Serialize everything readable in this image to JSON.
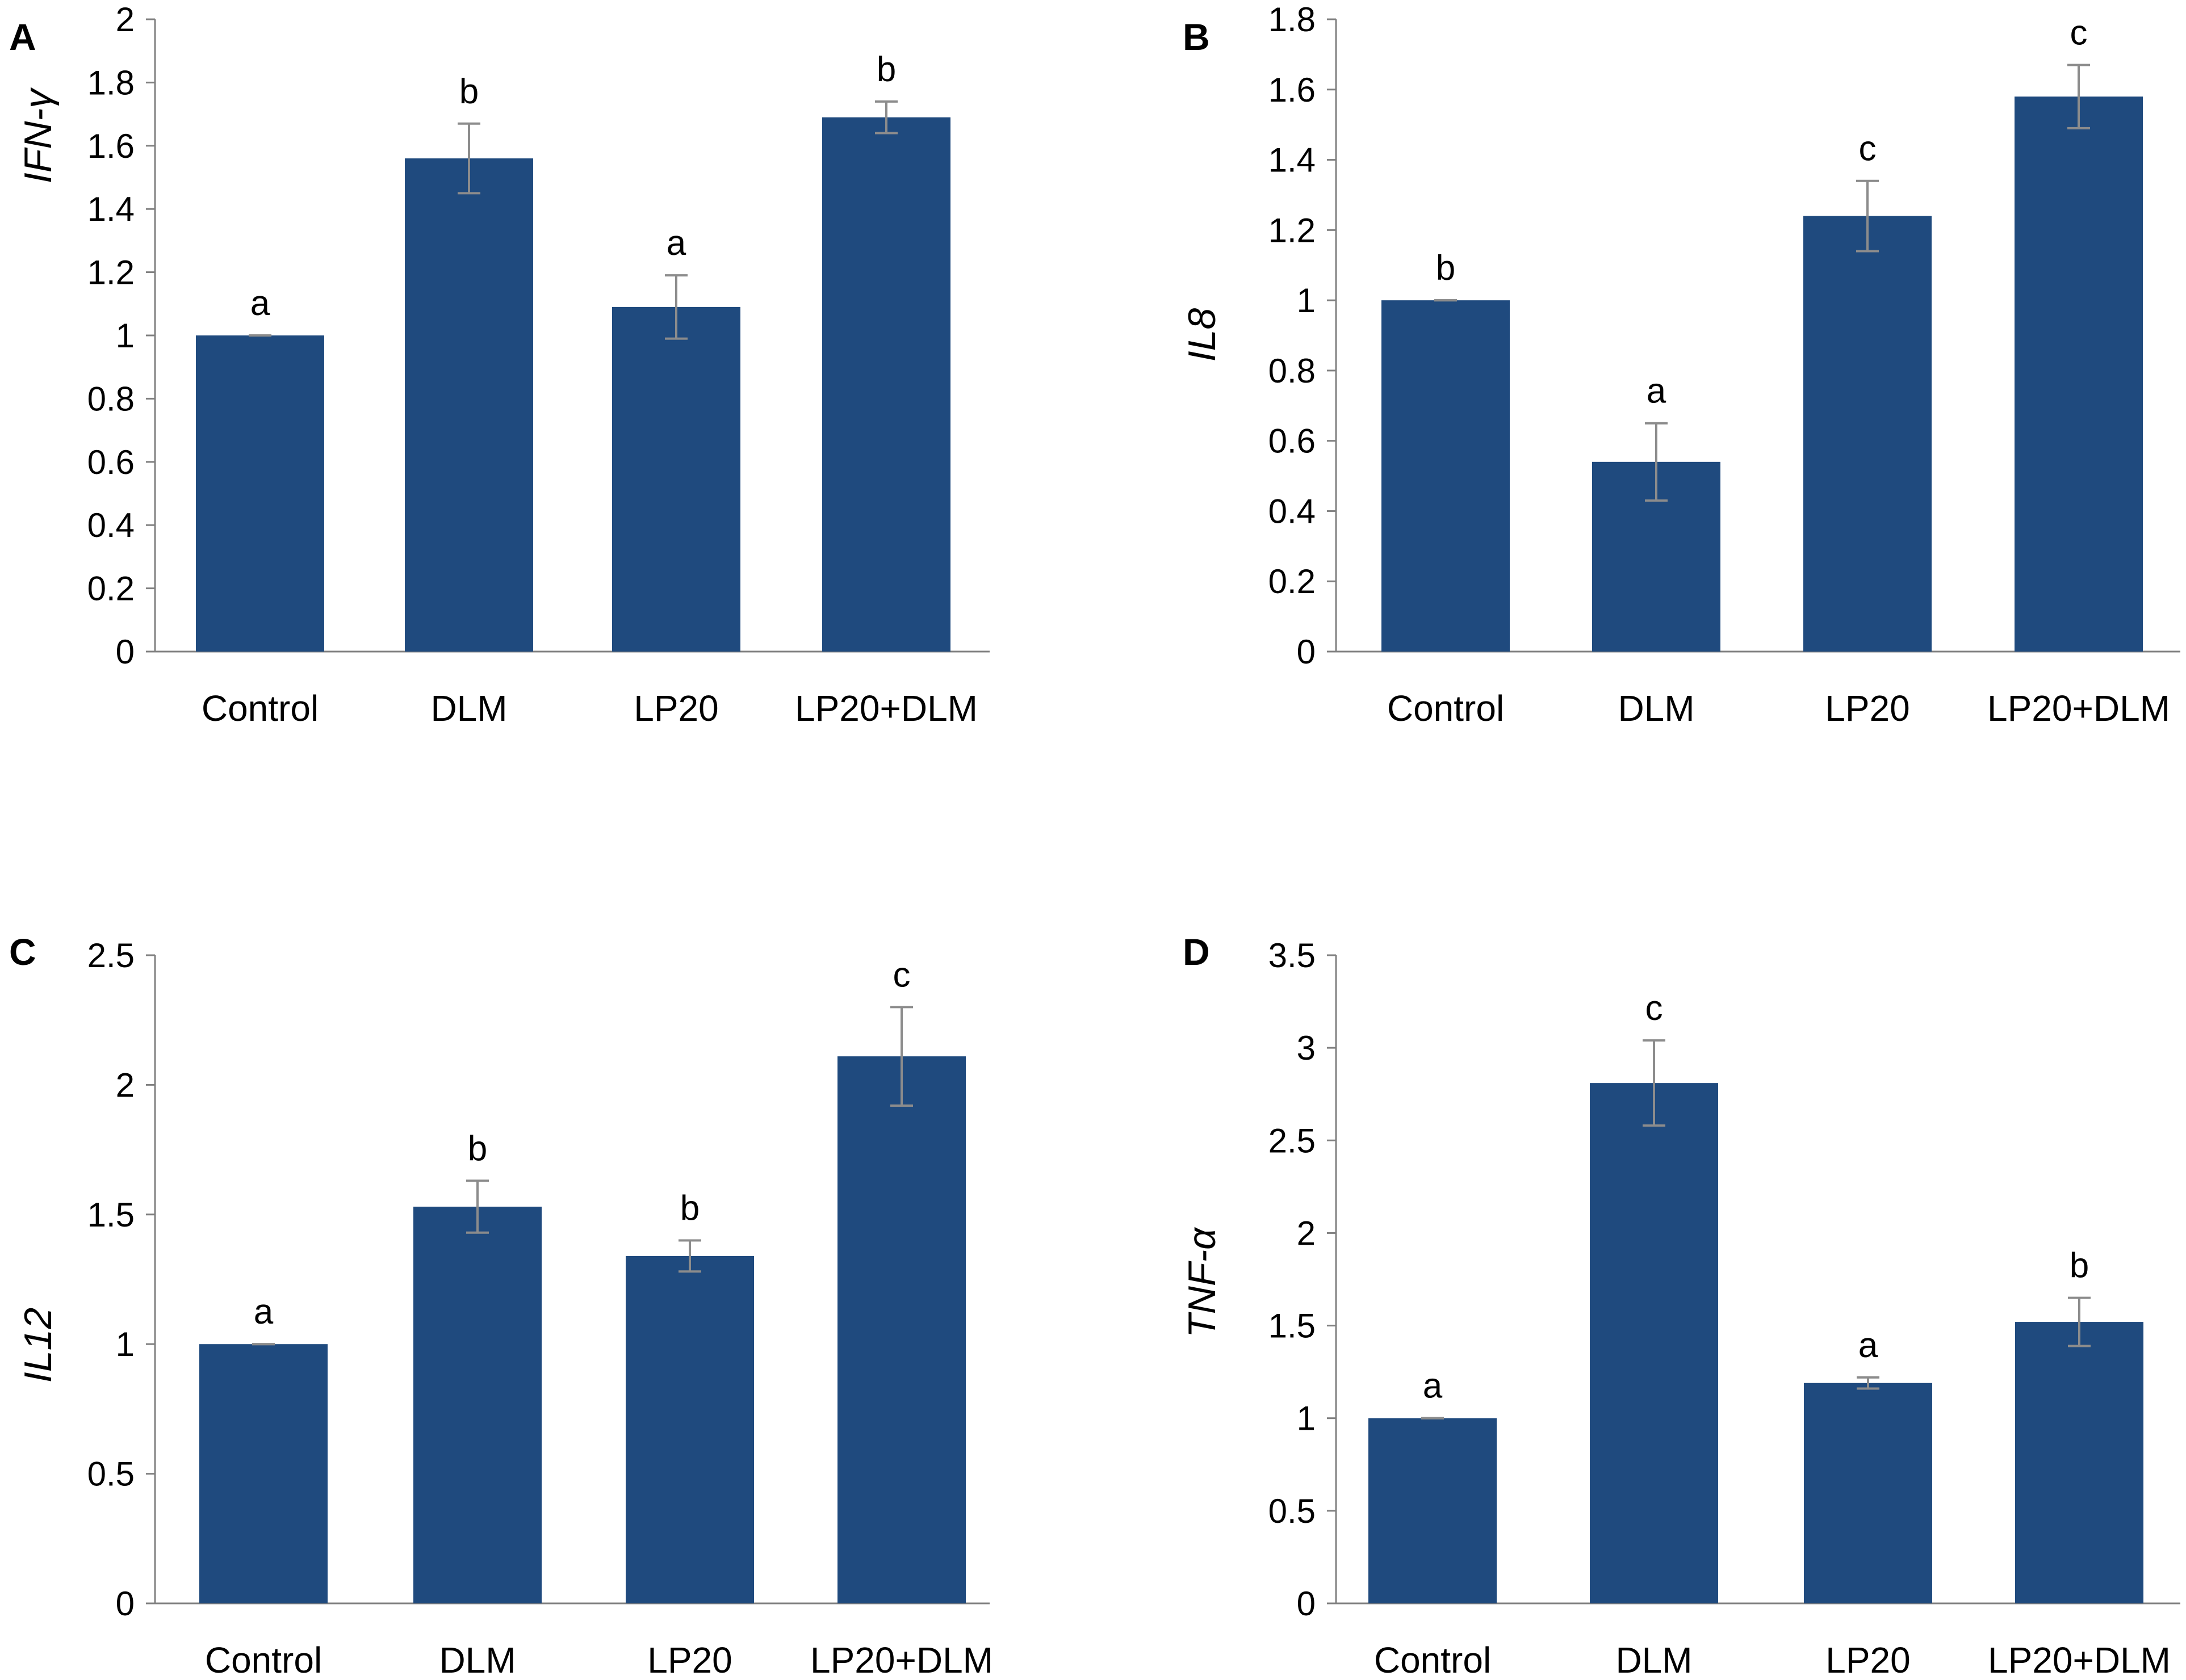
{
  "colors": {
    "bar": "#1f4a7e",
    "errorbar": "#8c8c8c",
    "axis": "#808080"
  },
  "chart_data": [
    {
      "panel": "A",
      "type": "bar",
      "categories": [
        "Control",
        "DLM",
        "LP20",
        "LP20+DLM"
      ],
      "values": [
        1.0,
        1.56,
        1.09,
        1.69
      ],
      "errors": [
        0.0,
        0.11,
        0.1,
        0.05
      ],
      "significance": [
        "a",
        "b",
        "a",
        "b"
      ],
      "ylabel": "IFN-γ",
      "ylim": [
        0,
        2
      ],
      "yticks": [
        "0",
        "0.2",
        "0.4",
        "0.6",
        "0.8",
        "1",
        "1.2",
        "1.4",
        "1.6",
        "1.8",
        "2"
      ]
    },
    {
      "panel": "B",
      "type": "bar",
      "categories": [
        "Control",
        "DLM",
        "LP20",
        "LP20+DLM"
      ],
      "values": [
        1.0,
        0.54,
        1.24,
        1.58
      ],
      "errors": [
        0.0,
        0.11,
        0.1,
        0.09
      ],
      "significance": [
        "b",
        "a",
        "c",
        "c"
      ],
      "ylabel": "IL8",
      "ylim": [
        0,
        1.8
      ],
      "yticks": [
        "0",
        "0.2",
        "0.4",
        "0.6",
        "0.8",
        "1",
        "1.2",
        "1.4",
        "1.6",
        "1.8"
      ]
    },
    {
      "panel": "C",
      "type": "bar",
      "categories": [
        "Control",
        "DLM",
        "LP20",
        "LP20+DLM"
      ],
      "values": [
        1.0,
        1.53,
        1.34,
        2.11
      ],
      "errors": [
        0.0,
        0.1,
        0.06,
        0.19
      ],
      "significance": [
        "a",
        "b",
        "b",
        "c"
      ],
      "ylabel": "IL12",
      "ylim": [
        0,
        2.5
      ],
      "yticks": [
        "0",
        "0.5",
        "1",
        "1.5",
        "2",
        "2.5"
      ]
    },
    {
      "panel": "D",
      "type": "bar",
      "categories": [
        "Control",
        "DLM",
        "LP20",
        "LP20+DLM"
      ],
      "values": [
        1.0,
        2.81,
        1.19,
        1.52
      ],
      "errors": [
        0.0,
        0.23,
        0.03,
        0.13
      ],
      "significance": [
        "a",
        "c",
        "a",
        "b"
      ],
      "ylabel": "TNF-α",
      "ylim": [
        0,
        3.5
      ],
      "yticks": [
        "0",
        "0.5",
        "1",
        "1.5",
        "2",
        "2.5",
        "3",
        "3.5"
      ]
    }
  ]
}
